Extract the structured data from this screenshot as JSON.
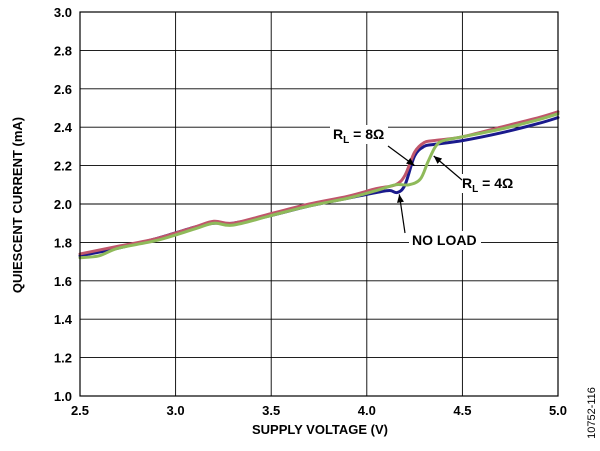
{
  "chart_data": {
    "type": "line",
    "xlabel": "SUPPLY VOLTAGE (V)",
    "ylabel": "QUIESCENT CURRENT (mA)",
    "xlim": [
      2.5,
      5.0
    ],
    "ylim": [
      1.0,
      3.0
    ],
    "x_ticks": [
      "2.5",
      "3.0",
      "3.5",
      "4.0",
      "4.5",
      "5.0"
    ],
    "y_ticks": [
      "1.0",
      "1.2",
      "1.4",
      "1.6",
      "1.8",
      "2.0",
      "2.2",
      "2.4",
      "2.6",
      "2.8",
      "3.0"
    ],
    "grid": true,
    "legend": "none",
    "series": [
      {
        "name": "NO LOAD",
        "color": "#1a1a8c",
        "x": [
          2.5,
          2.7,
          2.9,
          3.1,
          3.2,
          3.3,
          3.5,
          3.7,
          3.9,
          4.05,
          4.12,
          4.16,
          4.2,
          4.25,
          4.3,
          4.35,
          4.5,
          4.7,
          4.9,
          5.0
        ],
        "y": [
          1.73,
          1.77,
          1.82,
          1.88,
          1.9,
          1.9,
          1.94,
          1.99,
          2.03,
          2.06,
          2.07,
          2.06,
          2.1,
          2.25,
          2.3,
          2.31,
          2.33,
          2.37,
          2.42,
          2.45
        ]
      },
      {
        "name": "RL = 8Ω",
        "color": "#c0566b",
        "x": [
          2.5,
          2.7,
          2.9,
          3.1,
          3.2,
          3.3,
          3.5,
          3.7,
          3.9,
          4.05,
          4.15,
          4.2,
          4.25,
          4.3,
          4.35,
          4.5,
          4.7,
          4.9,
          5.0
        ],
        "y": [
          1.74,
          1.78,
          1.82,
          1.88,
          1.91,
          1.9,
          1.95,
          2.0,
          2.04,
          2.08,
          2.1,
          2.15,
          2.27,
          2.32,
          2.33,
          2.35,
          2.4,
          2.45,
          2.48
        ]
      },
      {
        "name": "RL = 4Ω",
        "color": "#8fba5a",
        "x": [
          2.5,
          2.6,
          2.7,
          2.9,
          3.1,
          3.2,
          3.3,
          3.5,
          3.7,
          3.9,
          4.05,
          4.15,
          4.22,
          4.28,
          4.32,
          4.36,
          4.4,
          4.5,
          4.7,
          4.9,
          5.0
        ],
        "y": [
          1.72,
          1.73,
          1.77,
          1.81,
          1.87,
          1.9,
          1.89,
          1.94,
          1.99,
          2.03,
          2.07,
          2.1,
          2.1,
          2.13,
          2.22,
          2.3,
          2.33,
          2.35,
          2.39,
          2.44,
          2.47
        ]
      }
    ],
    "annotations": [
      {
        "label_main": "R",
        "label_sub": "L",
        "label_rest": " = 8Ω",
        "tip_x": 4.25,
        "tip_y": 2.2
      },
      {
        "label_main": "R",
        "label_sub": "L",
        "label_rest": " = 4Ω",
        "tip_x": 4.35,
        "tip_y": 2.25
      },
      {
        "label_main": "NO LOAD",
        "label_sub": "",
        "label_rest": "",
        "tip_x": 4.17,
        "tip_y": 2.05
      }
    ],
    "figure_id": "10752-116"
  }
}
